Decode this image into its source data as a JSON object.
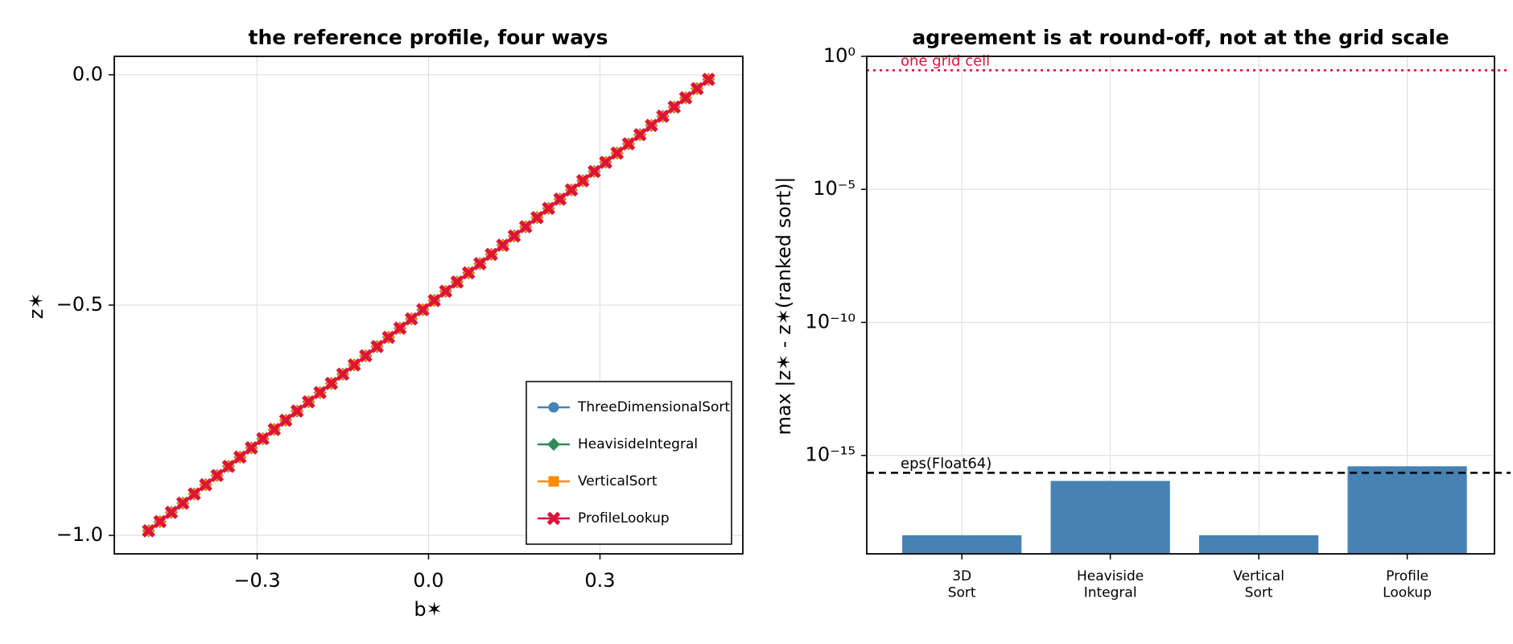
{
  "chart_data": [
    {
      "type": "line",
      "title": "the reference profile, four ways",
      "x_label": "b✶",
      "y_label": "z✶",
      "x": [
        -0.49,
        -0.47,
        -0.45,
        -0.43,
        -0.41,
        -0.39,
        -0.37,
        -0.35,
        -0.33,
        -0.31,
        -0.29,
        -0.27,
        -0.25,
        -0.23,
        -0.21,
        -0.19,
        -0.17,
        -0.15,
        -0.13,
        -0.11,
        -0.09,
        -0.07,
        -0.05,
        -0.03,
        -0.01,
        0.01,
        0.03,
        0.05,
        0.07,
        0.09,
        0.11,
        0.13,
        0.15,
        0.17,
        0.19,
        0.21,
        0.23,
        0.25,
        0.27,
        0.29,
        0.31,
        0.33,
        0.35,
        0.37,
        0.39,
        0.41,
        0.43,
        0.45,
        0.47,
        0.49
      ],
      "series": [
        {
          "name": "ThreeDimensionalSort",
          "color": "#4682b4",
          "marker": "circle",
          "values": [
            -0.99,
            -0.97,
            -0.95,
            -0.93,
            -0.91,
            -0.89,
            -0.87,
            -0.85,
            -0.83,
            -0.81,
            -0.79,
            -0.77,
            -0.75,
            -0.73,
            -0.71,
            -0.69,
            -0.67,
            -0.65,
            -0.63,
            -0.61,
            -0.59,
            -0.57,
            -0.55,
            -0.53,
            -0.51,
            -0.49,
            -0.47,
            -0.45,
            -0.43,
            -0.41,
            -0.39,
            -0.37,
            -0.35,
            -0.33,
            -0.31,
            -0.29,
            -0.27,
            -0.25,
            -0.23,
            -0.21,
            -0.19,
            -0.17,
            -0.15,
            -0.13,
            -0.11,
            -0.09,
            -0.07,
            -0.05,
            -0.03,
            -0.01
          ]
        },
        {
          "name": "HeavisideIntegral",
          "color": "#2e8b57",
          "marker": "diamond",
          "values": [
            -0.99,
            -0.97,
            -0.95,
            -0.93,
            -0.91,
            -0.89,
            -0.87,
            -0.85,
            -0.83,
            -0.81,
            -0.79,
            -0.77,
            -0.75,
            -0.73,
            -0.71,
            -0.69,
            -0.67,
            -0.65,
            -0.63,
            -0.61,
            -0.59,
            -0.57,
            -0.55,
            -0.53,
            -0.51,
            -0.49,
            -0.47,
            -0.45,
            -0.43,
            -0.41,
            -0.39,
            -0.37,
            -0.35,
            -0.33,
            -0.31,
            -0.29,
            -0.27,
            -0.25,
            -0.23,
            -0.21,
            -0.19,
            -0.17,
            -0.15,
            -0.13,
            -0.11,
            -0.09,
            -0.07,
            -0.05,
            -0.03,
            -0.01
          ]
        },
        {
          "name": "VerticalSort",
          "color": "#ff8c00",
          "marker": "square",
          "values": [
            -0.99,
            -0.97,
            -0.95,
            -0.93,
            -0.91,
            -0.89,
            -0.87,
            -0.85,
            -0.83,
            -0.81,
            -0.79,
            -0.77,
            -0.75,
            -0.73,
            -0.71,
            -0.69,
            -0.67,
            -0.65,
            -0.63,
            -0.61,
            -0.59,
            -0.57,
            -0.55,
            -0.53,
            -0.51,
            -0.49,
            -0.47,
            -0.45,
            -0.43,
            -0.41,
            -0.39,
            -0.37,
            -0.35,
            -0.33,
            -0.31,
            -0.29,
            -0.27,
            -0.25,
            -0.23,
            -0.21,
            -0.19,
            -0.17,
            -0.15,
            -0.13,
            -0.11,
            -0.09,
            -0.07,
            -0.05,
            -0.03,
            -0.01
          ]
        },
        {
          "name": "ProfileLookup",
          "color": "#dc143c",
          "marker": "cross",
          "values": [
            -0.99,
            -0.97,
            -0.95,
            -0.93,
            -0.91,
            -0.89,
            -0.87,
            -0.85,
            -0.83,
            -0.81,
            -0.79,
            -0.77,
            -0.75,
            -0.73,
            -0.71,
            -0.69,
            -0.67,
            -0.65,
            -0.63,
            -0.61,
            -0.59,
            -0.57,
            -0.55,
            -0.53,
            -0.51,
            -0.49,
            -0.47,
            -0.45,
            -0.43,
            -0.41,
            -0.39,
            -0.37,
            -0.35,
            -0.33,
            -0.31,
            -0.29,
            -0.27,
            -0.25,
            -0.23,
            -0.21,
            -0.19,
            -0.17,
            -0.15,
            -0.13,
            -0.11,
            -0.09,
            -0.07,
            -0.05,
            -0.03,
            -0.01
          ]
        }
      ],
      "xlim": [
        -0.55,
        0.55
      ],
      "ylim": [
        -1.04,
        0.04
      ],
      "xticks": [
        {
          "value": -0.3,
          "label": "−0.3"
        },
        {
          "value": 0,
          "label": "0.0"
        },
        {
          "value": 0.3,
          "label": "0.3"
        }
      ],
      "yticks": [
        {
          "value": 0,
          "label": "0.0"
        },
        {
          "value": -0.5,
          "label": "−0.5"
        },
        {
          "value": -1,
          "label": "−1.0"
        }
      ],
      "grid": true,
      "legend": "lower right"
    },
    {
      "type": "bar",
      "title": "agreement is at round-off, not at the grid scale",
      "y_label": "max |z✶ - z✶(ranked sort)|",
      "categories": [
        "3D\nSort",
        "Heaviside\nIntegral",
        "Vertical\nSort",
        "Profile\nLookup"
      ],
      "values": [
        1e-18,
        1.1e-16,
        1e-18,
        3.9e-16
      ],
      "color": "#4682b4",
      "yscale": "log",
      "ylim": [
        2e-19,
        1
      ],
      "yticks": [
        {
          "value": 1,
          "label": "10⁰"
        },
        {
          "value": 1e-05,
          "label": "10⁻⁵"
        },
        {
          "value": 1e-10,
          "label": "10⁻¹⁰"
        },
        {
          "value": 1e-15,
          "label": "10⁻¹⁵"
        }
      ],
      "hlines": [
        {
          "value": 0.3,
          "label": "one grid cell",
          "color": "#dc143c",
          "style": "dotted"
        },
        {
          "value": 2.220446049250313e-16,
          "label": "eps(Float64)",
          "color": "#000000",
          "style": "dashed"
        }
      ],
      "grid": true
    }
  ]
}
